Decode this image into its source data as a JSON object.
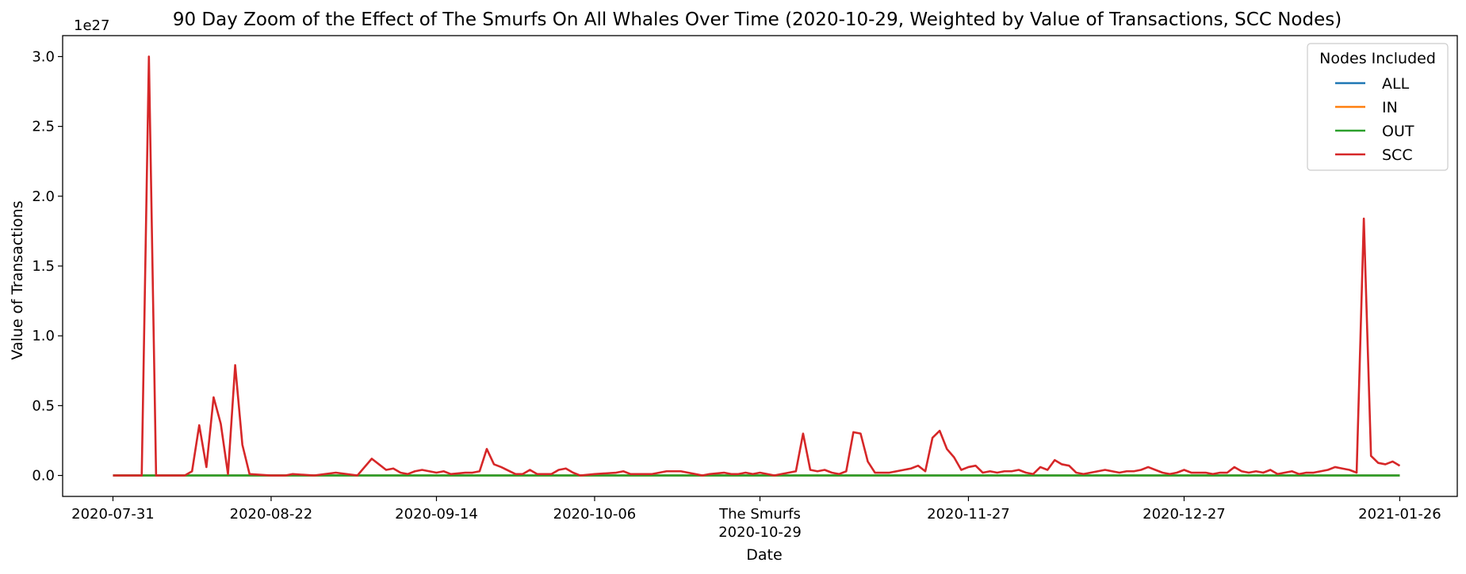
{
  "chart_data": {
    "type": "line",
    "title": "90 Day Zoom of the Effect of The Smurfs On All Whales Over Time (2020-10-29, Weighted by Value of Transactions, SCC Nodes)",
    "xlabel": "Date",
    "ylabel": "Value of Transactions",
    "y_scale_note": "1e27",
    "ylim": [
      -0.15,
      3.15
    ],
    "yticks": [
      0.0,
      0.5,
      1.0,
      1.5,
      2.0,
      2.5,
      3.0
    ],
    "ytick_labels": [
      "0.0",
      "0.5",
      "1.0",
      "1.5",
      "2.0",
      "2.5",
      "3.0"
    ],
    "xlim": [
      "2020-07-24",
      "2021-02-03"
    ],
    "xticks": [
      {
        "date": "2020-07-31",
        "label": "2020-07-31"
      },
      {
        "date": "2020-08-22",
        "label": "2020-08-22"
      },
      {
        "date": "2020-09-14",
        "label": "2020-09-14"
      },
      {
        "date": "2020-10-06",
        "label": "2020-10-06"
      },
      {
        "date": "2020-10-29",
        "label": "The Smurfs",
        "label2": "2020-10-29"
      },
      {
        "date": "2020-11-27",
        "label": "2020-11-27"
      },
      {
        "date": "2020-12-27",
        "label": "2020-12-27"
      },
      {
        "date": "2021-01-26",
        "label": "2021-01-26"
      }
    ],
    "legend": {
      "title": "Nodes Included",
      "placement": "top-right"
    },
    "series": [
      {
        "name": "ALL",
        "color": "#1f77b4",
        "points": [
          [
            "2020-07-31",
            0.0
          ],
          [
            "2021-01-26",
            0.0
          ]
        ]
      },
      {
        "name": "IN",
        "color": "#ff7f0e",
        "points": [
          [
            "2020-07-31",
            0.0
          ],
          [
            "2021-01-26",
            0.0
          ]
        ]
      },
      {
        "name": "OUT",
        "color": "#2ca02c",
        "points": [
          [
            "2020-07-31",
            0.0
          ],
          [
            "2021-01-26",
            0.0
          ]
        ]
      },
      {
        "name": "SCC",
        "color": "#d62728",
        "points": [
          [
            "2020-07-31",
            0.0
          ],
          [
            "2020-08-04",
            0.0
          ],
          [
            "2020-08-05",
            3.0
          ],
          [
            "2020-08-06",
            0.0
          ],
          [
            "2020-08-10",
            0.0
          ],
          [
            "2020-08-11",
            0.03
          ],
          [
            "2020-08-12",
            0.36
          ],
          [
            "2020-08-13",
            0.06
          ],
          [
            "2020-08-14",
            0.56
          ],
          [
            "2020-08-15",
            0.37
          ],
          [
            "2020-08-16",
            0.01
          ],
          [
            "2020-08-17",
            0.79
          ],
          [
            "2020-08-18",
            0.22
          ],
          [
            "2020-08-19",
            0.01
          ],
          [
            "2020-08-22",
            0.0
          ],
          [
            "2020-08-24",
            0.0
          ],
          [
            "2020-08-25",
            0.01
          ],
          [
            "2020-08-28",
            0.0
          ],
          [
            "2020-08-31",
            0.02
          ],
          [
            "2020-09-03",
            0.0
          ],
          [
            "2020-09-05",
            0.12
          ],
          [
            "2020-09-06",
            0.08
          ],
          [
            "2020-09-07",
            0.04
          ],
          [
            "2020-09-08",
            0.05
          ],
          [
            "2020-09-09",
            0.02
          ],
          [
            "2020-09-10",
            0.01
          ],
          [
            "2020-09-11",
            0.03
          ],
          [
            "2020-09-12",
            0.04
          ],
          [
            "2020-09-13",
            0.03
          ],
          [
            "2020-09-14",
            0.02
          ],
          [
            "2020-09-15",
            0.03
          ],
          [
            "2020-09-16",
            0.01
          ],
          [
            "2020-09-18",
            0.02
          ],
          [
            "2020-09-19",
            0.02
          ],
          [
            "2020-09-20",
            0.03
          ],
          [
            "2020-09-21",
            0.19
          ],
          [
            "2020-09-22",
            0.08
          ],
          [
            "2020-09-23",
            0.06
          ],
          [
            "2020-09-25",
            0.01
          ],
          [
            "2020-09-26",
            0.01
          ],
          [
            "2020-09-27",
            0.04
          ],
          [
            "2020-09-28",
            0.01
          ],
          [
            "2020-09-30",
            0.01
          ],
          [
            "2020-10-01",
            0.04
          ],
          [
            "2020-10-02",
            0.05
          ],
          [
            "2020-10-03",
            0.02
          ],
          [
            "2020-10-04",
            0.0
          ],
          [
            "2020-10-06",
            0.01
          ],
          [
            "2020-10-09",
            0.02
          ],
          [
            "2020-10-10",
            0.03
          ],
          [
            "2020-10-11",
            0.01
          ],
          [
            "2020-10-12",
            0.01
          ],
          [
            "2020-10-14",
            0.01
          ],
          [
            "2020-10-15",
            0.02
          ],
          [
            "2020-10-16",
            0.03
          ],
          [
            "2020-10-17",
            0.03
          ],
          [
            "2020-10-18",
            0.03
          ],
          [
            "2020-10-19",
            0.02
          ],
          [
            "2020-10-21",
            0.0
          ],
          [
            "2020-10-22",
            0.01
          ],
          [
            "2020-10-24",
            0.02
          ],
          [
            "2020-10-25",
            0.01
          ],
          [
            "2020-10-26",
            0.01
          ],
          [
            "2020-10-27",
            0.02
          ],
          [
            "2020-10-28",
            0.01
          ],
          [
            "2020-10-29",
            0.02
          ],
          [
            "2020-10-30",
            0.01
          ],
          [
            "2020-10-31",
            0.0
          ],
          [
            "2020-11-01",
            0.01
          ],
          [
            "2020-11-02",
            0.02
          ],
          [
            "2020-11-03",
            0.03
          ],
          [
            "2020-11-04",
            0.3
          ],
          [
            "2020-11-05",
            0.04
          ],
          [
            "2020-11-06",
            0.03
          ],
          [
            "2020-11-07",
            0.04
          ],
          [
            "2020-11-08",
            0.02
          ],
          [
            "2020-11-09",
            0.01
          ],
          [
            "2020-11-10",
            0.03
          ],
          [
            "2020-11-11",
            0.31
          ],
          [
            "2020-11-12",
            0.3
          ],
          [
            "2020-11-13",
            0.1
          ],
          [
            "2020-11-14",
            0.02
          ],
          [
            "2020-11-15",
            0.02
          ],
          [
            "2020-11-16",
            0.02
          ],
          [
            "2020-11-17",
            0.03
          ],
          [
            "2020-11-18",
            0.04
          ],
          [
            "2020-11-19",
            0.05
          ],
          [
            "2020-11-20",
            0.07
          ],
          [
            "2020-11-21",
            0.03
          ],
          [
            "2020-11-22",
            0.27
          ],
          [
            "2020-11-23",
            0.32
          ],
          [
            "2020-11-24",
            0.19
          ],
          [
            "2020-11-25",
            0.13
          ],
          [
            "2020-11-26",
            0.04
          ],
          [
            "2020-11-27",
            0.06
          ],
          [
            "2020-11-28",
            0.07
          ],
          [
            "2020-11-29",
            0.02
          ],
          [
            "2020-11-30",
            0.03
          ],
          [
            "2020-12-01",
            0.02
          ],
          [
            "2020-12-02",
            0.03
          ],
          [
            "2020-12-03",
            0.03
          ],
          [
            "2020-12-04",
            0.04
          ],
          [
            "2020-12-05",
            0.02
          ],
          [
            "2020-12-06",
            0.01
          ],
          [
            "2020-12-07",
            0.06
          ],
          [
            "2020-12-08",
            0.04
          ],
          [
            "2020-12-09",
            0.11
          ],
          [
            "2020-12-10",
            0.08
          ],
          [
            "2020-12-11",
            0.07
          ],
          [
            "2020-12-12",
            0.02
          ],
          [
            "2020-12-13",
            0.01
          ],
          [
            "2020-12-14",
            0.02
          ],
          [
            "2020-12-15",
            0.03
          ],
          [
            "2020-12-16",
            0.04
          ],
          [
            "2020-12-17",
            0.03
          ],
          [
            "2020-12-18",
            0.02
          ],
          [
            "2020-12-19",
            0.03
          ],
          [
            "2020-12-20",
            0.03
          ],
          [
            "2020-12-21",
            0.04
          ],
          [
            "2020-12-22",
            0.06
          ],
          [
            "2020-12-23",
            0.04
          ],
          [
            "2020-12-24",
            0.02
          ],
          [
            "2020-12-25",
            0.01
          ],
          [
            "2020-12-26",
            0.02
          ],
          [
            "2020-12-27",
            0.04
          ],
          [
            "2020-12-28",
            0.02
          ],
          [
            "2020-12-29",
            0.02
          ],
          [
            "2020-12-30",
            0.02
          ],
          [
            "2020-12-31",
            0.01
          ],
          [
            "2021-01-01",
            0.02
          ],
          [
            "2021-01-02",
            0.02
          ],
          [
            "2021-01-03",
            0.06
          ],
          [
            "2021-01-04",
            0.03
          ],
          [
            "2021-01-05",
            0.02
          ],
          [
            "2021-01-06",
            0.03
          ],
          [
            "2021-01-07",
            0.02
          ],
          [
            "2021-01-08",
            0.04
          ],
          [
            "2021-01-09",
            0.01
          ],
          [
            "2021-01-10",
            0.02
          ],
          [
            "2021-01-11",
            0.03
          ],
          [
            "2021-01-12",
            0.01
          ],
          [
            "2021-01-13",
            0.02
          ],
          [
            "2021-01-14",
            0.02
          ],
          [
            "2021-01-15",
            0.03
          ],
          [
            "2021-01-16",
            0.04
          ],
          [
            "2021-01-17",
            0.06
          ],
          [
            "2021-01-18",
            0.05
          ],
          [
            "2021-01-19",
            0.04
          ],
          [
            "2021-01-20",
            0.02
          ],
          [
            "2021-01-21",
            1.84
          ],
          [
            "2021-01-22",
            0.14
          ],
          [
            "2021-01-23",
            0.09
          ],
          [
            "2021-01-24",
            0.08
          ],
          [
            "2021-01-25",
            0.1
          ],
          [
            "2021-01-26",
            0.07
          ]
        ]
      }
    ]
  }
}
